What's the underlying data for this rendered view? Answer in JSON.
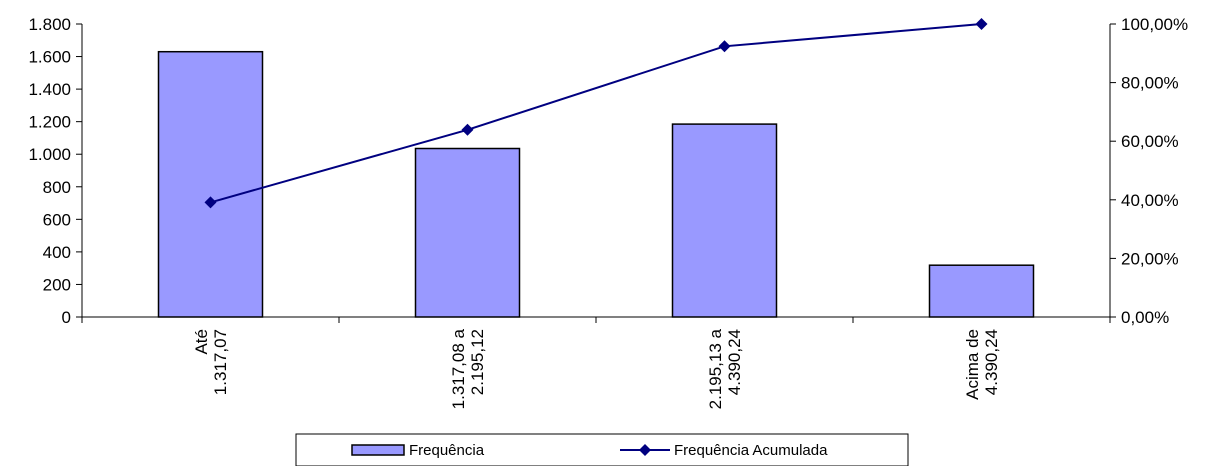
{
  "chart_data": {
    "type": "bar",
    "categories": [
      [
        "Até",
        "1.317,07"
      ],
      [
        "1.317,08 a",
        "2.195,12"
      ],
      [
        "2.195,13 a",
        "4.390,24"
      ],
      [
        "Acima de",
        "4.390,24"
      ]
    ],
    "series": [
      {
        "name": "Frequência",
        "type": "bar",
        "axis": "left",
        "values": [
          1630,
          1035,
          1185,
          318
        ]
      },
      {
        "name": "Frequência Acumulada",
        "type": "line",
        "axis": "right",
        "marker": "diamond",
        "values": [
          39.1,
          63.9,
          92.4,
          100.0
        ]
      }
    ],
    "y_left": {
      "range": [
        0,
        1800
      ],
      "ticks": [
        0,
        200,
        400,
        600,
        800,
        1000,
        1200,
        1400,
        1600,
        1800
      ],
      "tick_labels": [
        "0",
        "200",
        "400",
        "600",
        "800",
        "1.000",
        "1.200",
        "1.400",
        "1.600",
        "1.800"
      ]
    },
    "y_right": {
      "range": [
        0,
        100
      ],
      "ticks": [
        0,
        20,
        40,
        60,
        80,
        100
      ],
      "tick_labels": [
        "0,00%",
        "20,00%",
        "40,00%",
        "60,00%",
        "80,00%",
        "100,00%"
      ]
    },
    "title": "",
    "xlabel": "",
    "ylabel": "",
    "grid": false,
    "legend_position": "bottom",
    "colors": {
      "bar_fill": "#9999ff",
      "bar_stroke": "#000000",
      "line": "#000080",
      "axis": "#000000"
    }
  }
}
